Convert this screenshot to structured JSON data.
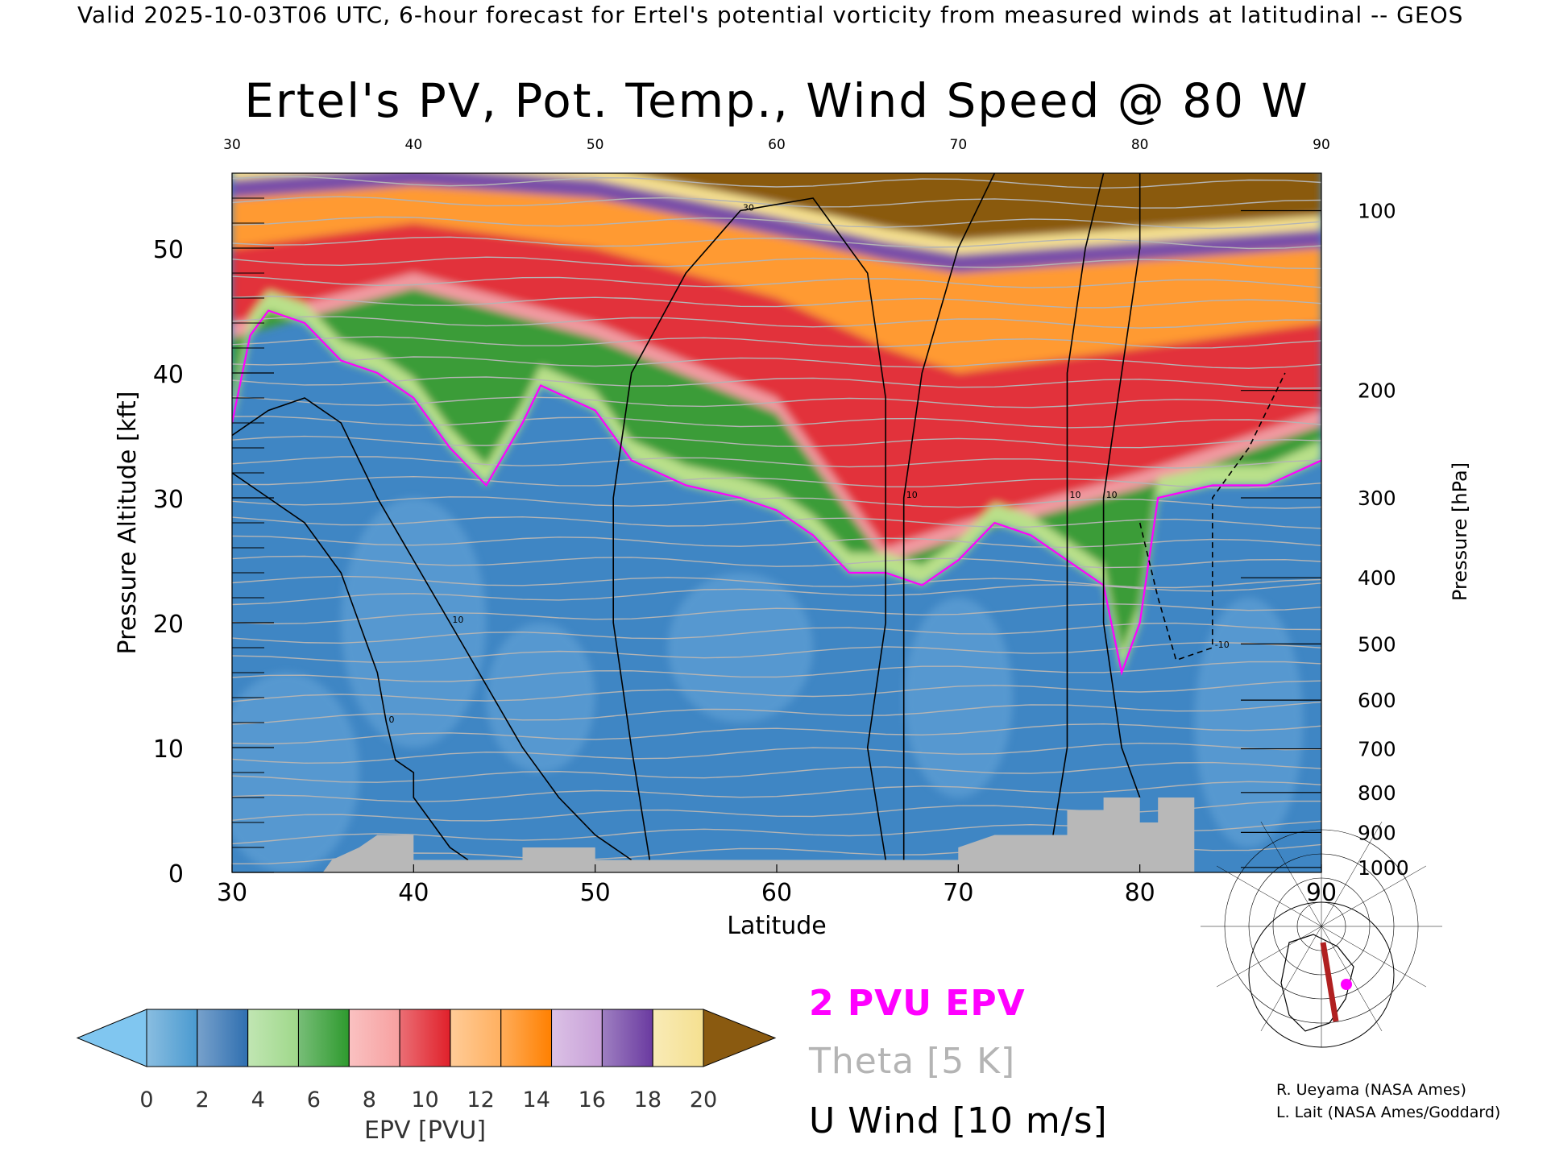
{
  "header": {
    "text": "Valid 2025-10-03T06 UTC, 6-hour forecast for Ertel's potential vorticity from measured winds at latitudinal -- GEOS"
  },
  "chart_data": {
    "type": "heatmap",
    "title": "Ertel's PV, Pot. Temp., Wind Speed @ 80 W",
    "xlabel": "Latitude",
    "ylabel_left": "Pressure Altitude [kft]",
    "ylabel_right": "Pressure [hPa]",
    "xlim": [
      30,
      90
    ],
    "ylim": [
      0,
      56
    ],
    "x_ticks": [
      "30",
      "40",
      "50",
      "60",
      "70",
      "80",
      "90"
    ],
    "top_ticks": [
      "30",
      "40",
      "50",
      "60",
      "70",
      "80",
      "90"
    ],
    "y_ticks": [
      "0",
      "10",
      "20",
      "30",
      "40",
      "50"
    ],
    "pressure_levels": [
      {
        "hpa": "100",
        "kft": 53.0
      },
      {
        "hpa": "200",
        "kft": 38.6
      },
      {
        "hpa": "300",
        "kft": 30.0
      },
      {
        "hpa": "400",
        "kft": 23.6
      },
      {
        "hpa": "500",
        "kft": 18.3
      },
      {
        "hpa": "600",
        "kft": 13.8
      },
      {
        "hpa": "700",
        "kft": 9.9
      },
      {
        "hpa": "800",
        "kft": 6.4
      },
      {
        "hpa": "900",
        "kft": 3.2
      },
      {
        "hpa": "1000",
        "kft": 0.4
      }
    ],
    "dynamical_tropopause_2pvu_kft": [
      {
        "lat": 30,
        "kft": 36
      },
      {
        "lat": 31,
        "kft": 43
      },
      {
        "lat": 32,
        "kft": 45
      },
      {
        "lat": 34,
        "kft": 44
      },
      {
        "lat": 36,
        "kft": 41
      },
      {
        "lat": 38,
        "kft": 40
      },
      {
        "lat": 40,
        "kft": 38
      },
      {
        "lat": 42,
        "kft": 34
      },
      {
        "lat": 44,
        "kft": 31
      },
      {
        "lat": 46,
        "kft": 36
      },
      {
        "lat": 47,
        "kft": 39
      },
      {
        "lat": 50,
        "kft": 37
      },
      {
        "lat": 52,
        "kft": 33
      },
      {
        "lat": 55,
        "kft": 31
      },
      {
        "lat": 58,
        "kft": 30
      },
      {
        "lat": 60,
        "kft": 29
      },
      {
        "lat": 62,
        "kft": 27
      },
      {
        "lat": 64,
        "kft": 24
      },
      {
        "lat": 66,
        "kft": 24
      },
      {
        "lat": 68,
        "kft": 23
      },
      {
        "lat": 70,
        "kft": 25
      },
      {
        "lat": 72,
        "kft": 28
      },
      {
        "lat": 74,
        "kft": 27
      },
      {
        "lat": 76,
        "kft": 25
      },
      {
        "lat": 78,
        "kft": 23
      },
      {
        "lat": 79,
        "kft": 16
      },
      {
        "lat": 80,
        "kft": 20
      },
      {
        "lat": 81,
        "kft": 30
      },
      {
        "lat": 84,
        "kft": 31
      },
      {
        "lat": 87,
        "kft": 31
      },
      {
        "lat": 90,
        "kft": 33
      }
    ],
    "epv_bands_top_kft": [
      {
        "lat": 30,
        "green_top": 44,
        "red_top": 50,
        "orange_top": 54
      },
      {
        "lat": 40,
        "green_top": 48,
        "red_top": 52,
        "orange_top": 55
      },
      {
        "lat": 50,
        "green_top": 44,
        "red_top": 50,
        "orange_top": 54
      },
      {
        "lat": 60,
        "green_top": 38,
        "red_top": 46,
        "orange_top": 51
      },
      {
        "lat": 66,
        "green_top": 26,
        "red_top": 42,
        "orange_top": 49
      },
      {
        "lat": 70,
        "green_top": 28,
        "red_top": 40,
        "orange_top": 48
      },
      {
        "lat": 80,
        "green_top": 32,
        "red_top": 42,
        "orange_top": 49
      },
      {
        "lat": 90,
        "green_top": 37,
        "red_top": 44,
        "orange_top": 50
      }
    ],
    "u_wind_contours": [
      {
        "label": "10",
        "points": [
          [
            30,
            35
          ],
          [
            32,
            37
          ],
          [
            34,
            38
          ],
          [
            36,
            36
          ],
          [
            38,
            30
          ],
          [
            40,
            25
          ],
          [
            42,
            20
          ],
          [
            44,
            15
          ],
          [
            46,
            10
          ],
          [
            48,
            6
          ],
          [
            50,
            3
          ],
          [
            52,
            1
          ]
        ]
      },
      {
        "label": "0",
        "points": [
          [
            30,
            32
          ],
          [
            32,
            30
          ],
          [
            34,
            28
          ],
          [
            36,
            24
          ],
          [
            37,
            20
          ],
          [
            38,
            16
          ],
          [
            38.5,
            12
          ],
          [
            39,
            9
          ],
          [
            40,
            8
          ],
          [
            40,
            6
          ],
          [
            41,
            4
          ],
          [
            42,
            2
          ],
          [
            43,
            1
          ]
        ]
      },
      {
        "label": "30",
        "points": [
          [
            53,
            1
          ],
          [
            52,
            10
          ],
          [
            51,
            20
          ],
          [
            51,
            30
          ],
          [
            52,
            40
          ],
          [
            55,
            48
          ],
          [
            58,
            53
          ],
          [
            62,
            54
          ],
          [
            65,
            48
          ],
          [
            66,
            38
          ],
          [
            66,
            20
          ],
          [
            65,
            10
          ],
          [
            66,
            1
          ]
        ]
      },
      {
        "label": "10",
        "points": [
          [
            67,
            1
          ],
          [
            67,
            10
          ],
          [
            67,
            20
          ],
          [
            67,
            30
          ],
          [
            68,
            40
          ],
          [
            70,
            50
          ],
          [
            72,
            56
          ]
        ]
      },
      {
        "label": "10",
        "points": [
          [
            75,
            1
          ],
          [
            76,
            10
          ],
          [
            76,
            20
          ],
          [
            76,
            30
          ],
          [
            76,
            40
          ],
          [
            77,
            50
          ],
          [
            78,
            56
          ]
        ]
      },
      {
        "label": "10",
        "points": [
          [
            80,
            6
          ],
          [
            79,
            10
          ],
          [
            78,
            20
          ],
          [
            78,
            30
          ],
          [
            79,
            40
          ],
          [
            80,
            50
          ],
          [
            80,
            56
          ]
        ]
      },
      {
        "label": "-10",
        "points": [
          [
            80,
            28
          ],
          [
            81,
            22
          ],
          [
            82,
            17
          ],
          [
            84,
            18
          ],
          [
            84,
            30
          ],
          [
            86,
            34
          ],
          [
            88,
            40
          ]
        ]
      }
    ],
    "colorbar": {
      "label": "EPV [PVU]",
      "ticks": [
        "0",
        "2",
        "4",
        "6",
        "8",
        "10",
        "12",
        "14",
        "16",
        "18",
        "20"
      ],
      "bins": [
        "#4a9ad0",
        "#2f6fb0",
        "#9fd88a",
        "#2e9a2e",
        "#f7a0a0",
        "#e0202a",
        "#ffb060",
        "#ff8000",
        "#c8a0d8",
        "#6a3aa0",
        "#f5e090"
      ],
      "below_color": "#80c6f0",
      "above_color": "#8a5a10"
    },
    "legend": [
      {
        "text": "2 PVU EPV",
        "color": "#ff00ff"
      },
      {
        "text": "Theta [5 K]",
        "color": "#b4b4b4"
      },
      {
        "text": "U Wind [10 m/s]",
        "color": "#000000"
      }
    ],
    "terrain_color": "#b8b8b8"
  },
  "credits": [
    "R. Ueyama (NASA Ames)",
    "L. Lait (NASA Ames/Goddard)"
  ]
}
